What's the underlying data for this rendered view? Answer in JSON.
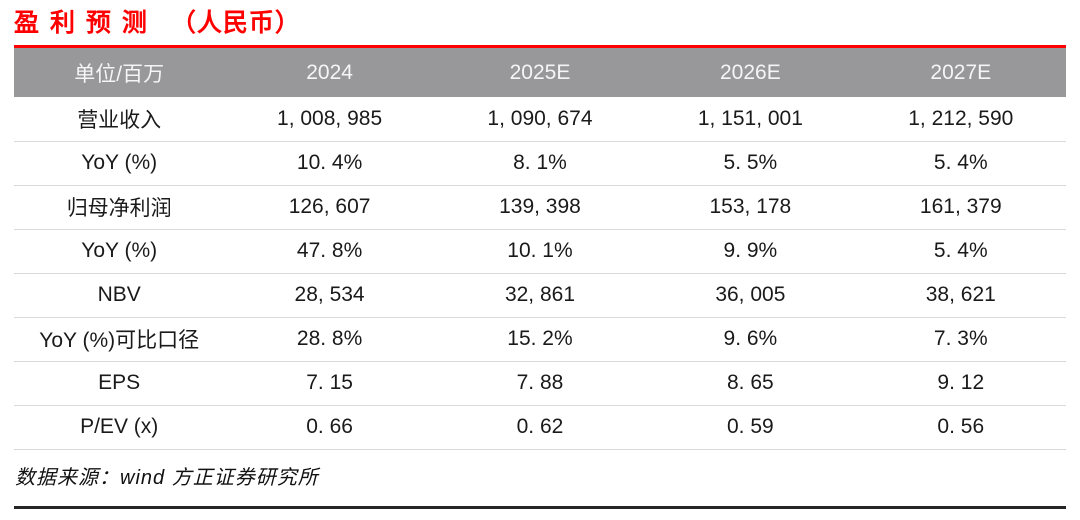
{
  "title": {
    "main": "盈 利 预 测",
    "paren": "（人民币）"
  },
  "colors": {
    "accent_red": "#FE0000",
    "header_bg": "#98989A",
    "header_text": "#F5F5F5",
    "row_divider": "#D9D9D9",
    "body_text": "#1A1A1A"
  },
  "table": {
    "header": [
      "单位/百万",
      "2024",
      "2025E",
      "2026E",
      "2027E"
    ],
    "rows": [
      {
        "label": "营业收入",
        "values": [
          "1, 008, 985",
          "1, 090, 674",
          "1, 151, 001",
          "1, 212, 590"
        ]
      },
      {
        "label": "YoY (%)",
        "values": [
          "10. 4%",
          "8. 1%",
          "5. 5%",
          "5. 4%"
        ]
      },
      {
        "label": "归母净利润",
        "values": [
          "126, 607",
          "139, 398",
          "153, 178",
          "161, 379"
        ]
      },
      {
        "label": "YoY (%)",
        "values": [
          "47. 8%",
          "10. 1%",
          "9. 9%",
          "5. 4%"
        ]
      },
      {
        "label": "NBV",
        "values": [
          "28, 534",
          "32, 861",
          "36, 005",
          "38, 621"
        ]
      },
      {
        "label": "YoY (%)可比口径",
        "values": [
          "28. 8%",
          "15. 2%",
          "9. 6%",
          "7. 3%"
        ]
      },
      {
        "label": "EPS",
        "values": [
          "7. 15",
          "7. 88",
          "8. 65",
          "9. 12"
        ]
      },
      {
        "label": "P/EV (x)",
        "values": [
          "0. 66",
          "0. 62",
          "0. 59",
          "0. 56"
        ]
      }
    ]
  },
  "source_note": "数据来源：wind 方正证券研究所"
}
